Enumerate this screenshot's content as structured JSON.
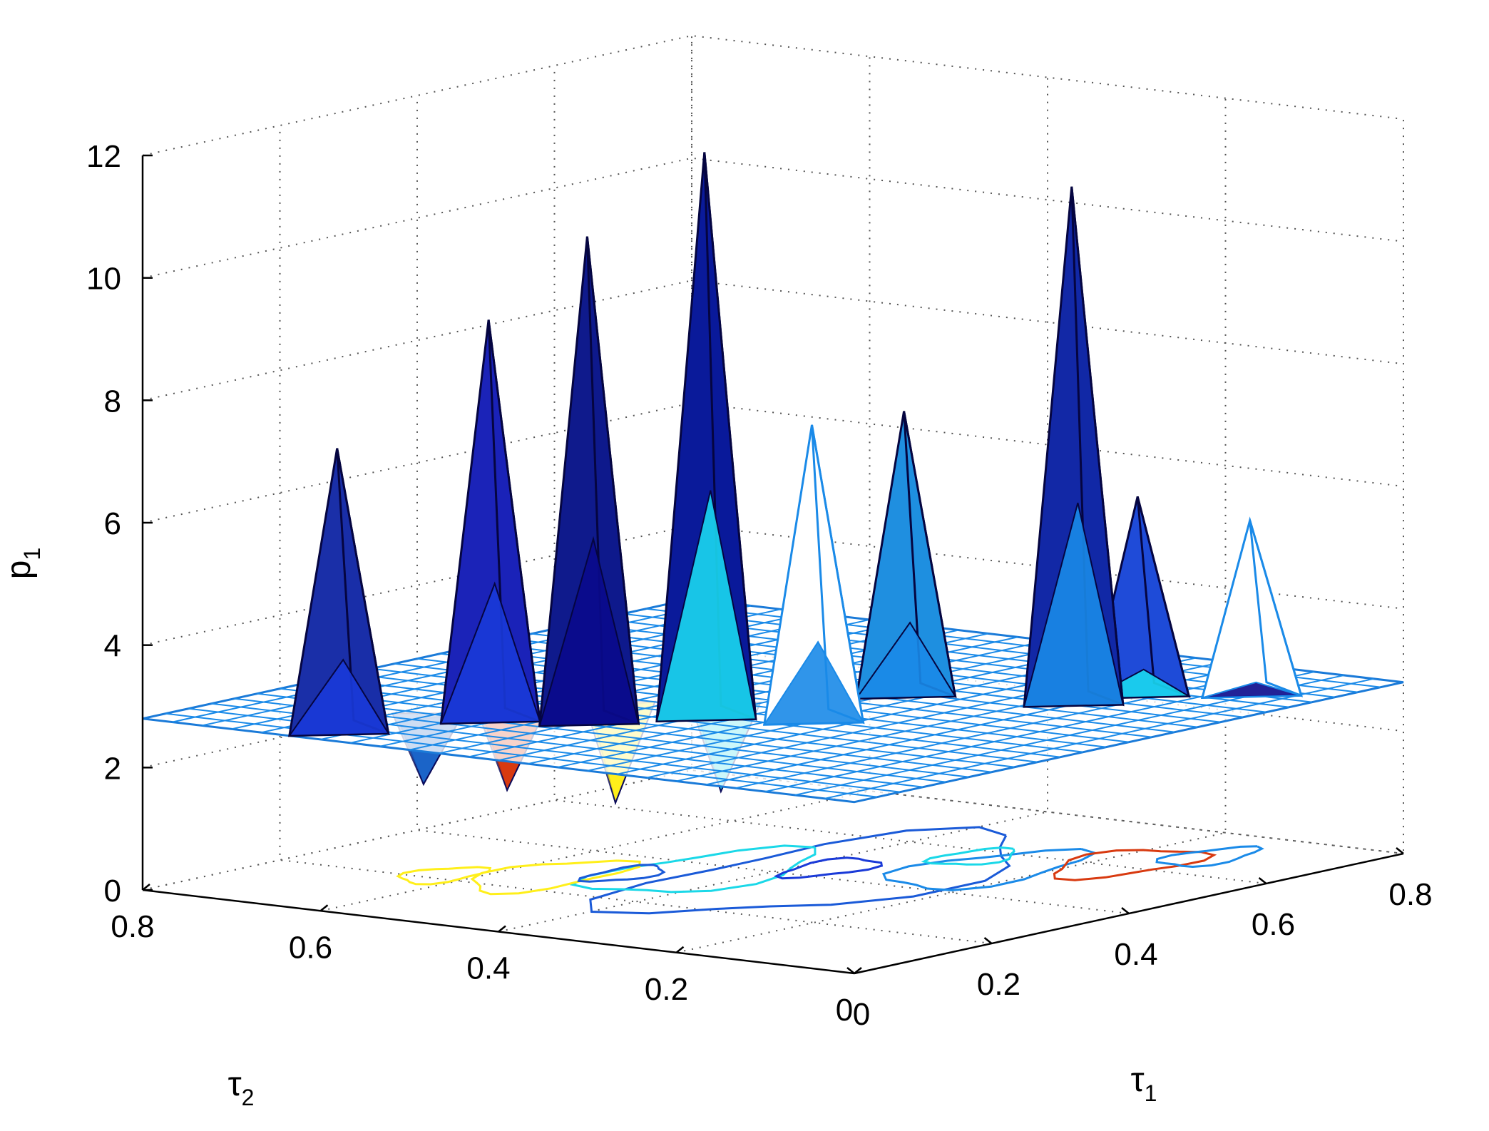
{
  "chart_data": {
    "type": "surface",
    "x_axis": {
      "label": "τ",
      "label_sub": "1",
      "ticks": [
        0,
        0.2,
        0.4,
        0.6,
        0.8
      ],
      "range": [
        0,
        0.8
      ]
    },
    "y_axis": {
      "label": "τ",
      "label_sub": "2",
      "ticks": [
        0,
        0.2,
        0.4,
        0.6,
        0.8
      ],
      "range": [
        0,
        0.8
      ]
    },
    "z_axis": {
      "label": "p",
      "label_sub": "1",
      "ticks": [
        0,
        2,
        4,
        6,
        8,
        10,
        12
      ],
      "range": [
        0,
        12
      ]
    },
    "grid": true,
    "plane_level": 2.8,
    "peaks": [
      {
        "t1": 0.05,
        "t2": 0.62,
        "p1": 7.4,
        "color": "#1a2fa8"
      },
      {
        "t1": 0.18,
        "t2": 0.55,
        "p1": 9.3,
        "color": "#1b23b8"
      },
      {
        "t1": 0.22,
        "t2": 0.47,
        "p1": 10.7,
        "color": "#0f1a8c"
      },
      {
        "t1": 0.3,
        "t2": 0.4,
        "p1": 12.0,
        "color": "#0a1a9a"
      },
      {
        "t1": 0.34,
        "t2": 0.31,
        "p1": 7.6,
        "color": "#ffffff"
      },
      {
        "t1": 0.5,
        "t2": 0.33,
        "p1": 7.4,
        "color": "#1f8fe0"
      },
      {
        "t1": 0.55,
        "t2": 0.18,
        "p1": 11.2,
        "color": "#1228a6"
      },
      {
        "t1": 0.62,
        "t2": 0.16,
        "p1": 6.0,
        "color": "#1f4bd8"
      },
      {
        "t1": 0.68,
        "t2": 0.08,
        "p1": 5.6,
        "color": "#ffffff"
      }
    ],
    "dips": [
      {
        "t1": 0.15,
        "t2": 0.6,
        "p1": 1.7,
        "color": "#1b64c8"
      },
      {
        "t1": 0.3,
        "t2": 0.5,
        "p1": 1.2,
        "color": "#ffef1a"
      },
      {
        "t1": 0.22,
        "t2": 0.56,
        "p1": 1.5,
        "color": "#d83a10"
      },
      {
        "t1": 0.35,
        "t2": 0.42,
        "p1": 1.4,
        "color": "#1ad8e8"
      }
    ],
    "colormap": [
      "#0a0a8c",
      "#1a3ad8",
      "#1a8ae8",
      "#1ad8f0",
      "#ffffff",
      "#ffef1a",
      "#f0a010",
      "#d83a10"
    ]
  }
}
